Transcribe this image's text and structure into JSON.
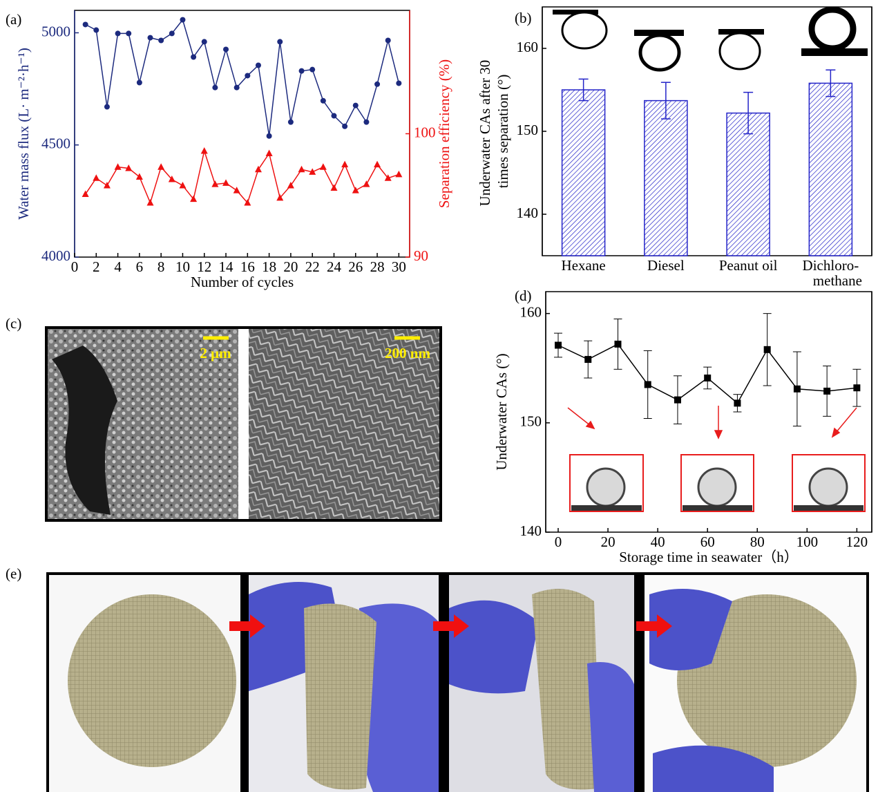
{
  "panels": {
    "labels": [
      "(a)",
      "(b)",
      "(c)",
      "(d)",
      "(e)"
    ],
    "scale_bars": [
      "2 μm",
      "200 nm"
    ]
  },
  "chart_data": [
    {
      "type": "line",
      "ylabel": "Water mass flux (L· m⁻²·h⁻¹)",
      "y2label": "Separation efficiency (%)",
      "xlabel": "Number of cycles",
      "x": [
        1,
        2,
        3,
        4,
        5,
        6,
        7,
        8,
        9,
        10,
        11,
        12,
        13,
        14,
        15,
        16,
        17,
        18,
        19,
        20,
        21,
        22,
        23,
        24,
        25,
        26,
        27,
        28,
        29,
        30
      ],
      "xlim": [
        0,
        31
      ],
      "xticks": [
        0,
        2,
        4,
        6,
        8,
        10,
        12,
        14,
        16,
        18,
        20,
        22,
        24,
        26,
        28,
        30
      ],
      "ylim": [
        4000,
        5100
      ],
      "yticks": [
        4000,
        4500,
        5000
      ],
      "y2lim": [
        90,
        110
      ],
      "y2ticks": [
        90,
        100
      ],
      "series": [
        {
          "color": "#1c2a7e",
          "marker": "circle",
          "values": [
            5037,
            5012,
            4670,
            4997,
            4997,
            4778,
            4978,
            4966,
            4997,
            5058,
            4892,
            4960,
            4756,
            4926,
            4756,
            4809,
            4855,
            4540,
            4960,
            4602,
            4830,
            4836,
            4697,
            4630,
            4583,
            4676,
            4602,
            4771,
            4966,
            4775
          ]
        },
        {
          "color": "#ee1111",
          "marker": "triangle",
          "axis": "y2",
          "values": [
            95.1,
            96.4,
            95.8,
            97.3,
            97.2,
            96.5,
            94.4,
            97.3,
            96.3,
            95.8,
            94.7,
            98.6,
            95.9,
            96.0,
            95.4,
            94.4,
            97.1,
            98.4,
            94.8,
            95.8,
            97.1,
            96.9,
            97.3,
            95.6,
            97.5,
            95.4,
            95.9,
            97.5,
            96.4,
            96.7
          ]
        }
      ]
    },
    {
      "type": "bar",
      "ylabel": "Underwater CAs after 30 times separation (°)",
      "categories": [
        "Hexane",
        "Diesel",
        "Peanut oil",
        "Dichloro-methane"
      ],
      "values": [
        155.0,
        153.7,
        152.2,
        155.8
      ],
      "errors": [
        1.3,
        2.2,
        2.5,
        1.6
      ],
      "color": "#2222c8",
      "ylim": [
        135,
        165
      ],
      "yticks": [
        140,
        150,
        160
      ]
    },
    {
      "type": "line",
      "ylabel": "Underwater CAs (°)",
      "xlabel": "Storage time in seawater（h）",
      "x": [
        0,
        12,
        24,
        36,
        48,
        60,
        72,
        84,
        96,
        108,
        120
      ],
      "xlim": [
        -5,
        126
      ],
      "xticks": [
        0,
        20,
        40,
        60,
        80,
        100,
        120
      ],
      "ylim": [
        140,
        162
      ],
      "yticks": [
        140,
        150,
        160
      ],
      "series": [
        {
          "color": "#000000",
          "marker": "square",
          "values": [
            157.1,
            155.8,
            157.2,
            153.5,
            152.1,
            154.1,
            151.8,
            156.7,
            153.1,
            152.9,
            153.2
          ],
          "errors": [
            1.1,
            1.7,
            2.3,
            3.1,
            2.2,
            1.0,
            0.8,
            3.3,
            3.4,
            2.3,
            1.7
          ]
        }
      ]
    }
  ]
}
